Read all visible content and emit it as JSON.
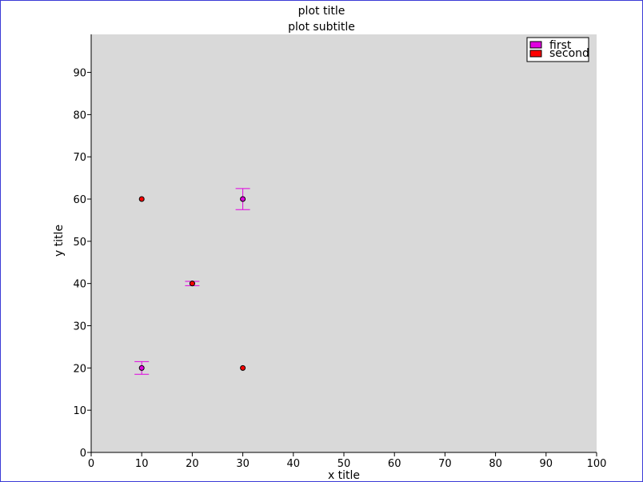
{
  "chart_data": {
    "type": "scatter",
    "title": "plot title",
    "subtitle": "plot subtitle",
    "xlabel": "x title",
    "ylabel": "y title",
    "xlim": [
      0,
      100
    ],
    "ylim": [
      0,
      99
    ],
    "xticks": [
      0,
      10,
      20,
      30,
      40,
      50,
      60,
      70,
      80,
      90,
      100
    ],
    "yticks": [
      0,
      10,
      20,
      30,
      40,
      50,
      60,
      70,
      80,
      90
    ],
    "grid": false,
    "legend_position": "top-right",
    "plot_background": "#d9d9d9",
    "series": [
      {
        "name": "first",
        "color": "#e000e0",
        "points": [
          {
            "x": 10,
            "y": 20,
            "err": 1.5
          },
          {
            "x": 20,
            "y": 40,
            "err": 0.5
          },
          {
            "x": 30,
            "y": 60,
            "err": 2.5
          }
        ]
      },
      {
        "name": "second",
        "color": "#ff0000",
        "points": [
          {
            "x": 10,
            "y": 60
          },
          {
            "x": 20,
            "y": 40
          },
          {
            "x": 30,
            "y": 20
          }
        ]
      }
    ]
  }
}
